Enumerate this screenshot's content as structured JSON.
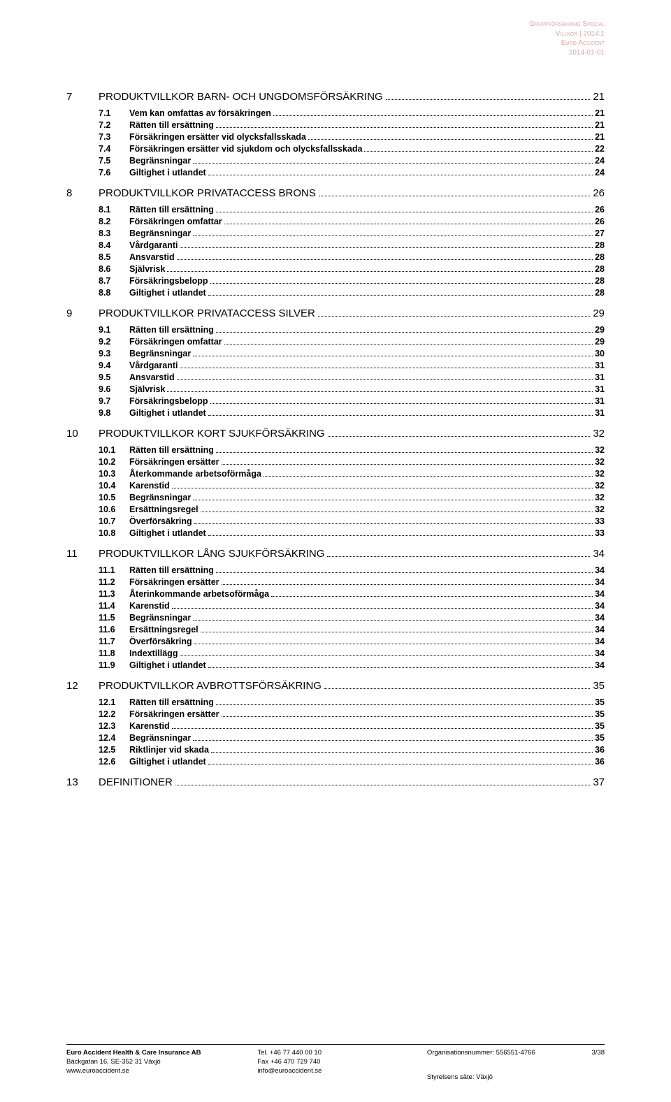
{
  "header": {
    "line1": "Gruppförsäkring Special",
    "line2": "Villkor | 2014:1",
    "line3": "Euro Accident",
    "line4": "2014-01-01"
  },
  "toc": [
    {
      "level": 1,
      "num": "7",
      "title": "PRODUKTVILLKOR BARN- OCH UNGDOMSFÖRSÄKRING",
      "page": "21"
    },
    {
      "level": 2,
      "num": "7.1",
      "title": "Vem kan omfattas av försäkringen",
      "page": "21"
    },
    {
      "level": 2,
      "num": "7.2",
      "title": "Rätten till ersättning",
      "page": "21"
    },
    {
      "level": 2,
      "num": "7.3",
      "title": "Försäkringen ersätter vid olycksfallsskada",
      "page": "21"
    },
    {
      "level": 2,
      "num": "7.4",
      "title": "Försäkringen ersätter vid sjukdom och olycksfallsskada",
      "page": "22"
    },
    {
      "level": 2,
      "num": "7.5",
      "title": "Begränsningar",
      "page": "24"
    },
    {
      "level": 2,
      "num": "7.6",
      "title": "Giltighet i utlandet",
      "page": "24"
    },
    {
      "level": 1,
      "num": "8",
      "title": "PRODUKTVILLKOR PRIVATACCESS BRONS",
      "page": "26"
    },
    {
      "level": 2,
      "num": "8.1",
      "title": "Rätten till ersättning",
      "page": "26"
    },
    {
      "level": 2,
      "num": "8.2",
      "title": "Försäkringen omfattar",
      "page": "26"
    },
    {
      "level": 2,
      "num": "8.3",
      "title": "Begränsningar",
      "page": "27"
    },
    {
      "level": 2,
      "num": "8.4",
      "title": "Vårdgaranti",
      "page": "28"
    },
    {
      "level": 2,
      "num": "8.5",
      "title": "Ansvarstid",
      "page": "28"
    },
    {
      "level": 2,
      "num": "8.6",
      "title": "Självrisk",
      "page": "28"
    },
    {
      "level": 2,
      "num": "8.7",
      "title": "Försäkringsbelopp",
      "page": "28"
    },
    {
      "level": 2,
      "num": "8.8",
      "title": "Giltighet i utlandet",
      "page": "28"
    },
    {
      "level": 1,
      "num": "9",
      "title": "PRODUKTVILLKOR PRIVATACCESS SILVER",
      "page": "29"
    },
    {
      "level": 2,
      "num": "9.1",
      "title": "Rätten till ersättning",
      "page": "29"
    },
    {
      "level": 2,
      "num": "9.2",
      "title": "Försäkringen omfattar",
      "page": "29"
    },
    {
      "level": 2,
      "num": "9.3",
      "title": "Begränsningar",
      "page": "30"
    },
    {
      "level": 2,
      "num": "9.4",
      "title": "Vårdgaranti",
      "page": "31"
    },
    {
      "level": 2,
      "num": "9.5",
      "title": "Ansvarstid",
      "page": "31"
    },
    {
      "level": 2,
      "num": "9.6",
      "title": "Självrisk",
      "page": "31"
    },
    {
      "level": 2,
      "num": "9.7",
      "title": "Försäkringsbelopp",
      "page": "31"
    },
    {
      "level": 2,
      "num": "9.8",
      "title": "Giltighet i utlandet",
      "page": "31"
    },
    {
      "level": 1,
      "num": "10",
      "title": "PRODUKTVILLKOR KORT SJUKFÖRSÄKRING",
      "page": "32"
    },
    {
      "level": 2,
      "num": "10.1",
      "title": "Rätten till ersättning",
      "page": "32"
    },
    {
      "level": 2,
      "num": "10.2",
      "title": "Försäkringen ersätter",
      "page": "32"
    },
    {
      "level": 2,
      "num": "10.3",
      "title": "Återkommande arbetsoförmåga",
      "page": "32"
    },
    {
      "level": 2,
      "num": "10.4",
      "title": "Karenstid",
      "page": "32"
    },
    {
      "level": 2,
      "num": "10.5",
      "title": "Begränsningar",
      "page": "32"
    },
    {
      "level": 2,
      "num": "10.6",
      "title": "Ersättningsregel",
      "page": "32"
    },
    {
      "level": 2,
      "num": "10.7",
      "title": "Överförsäkring",
      "page": "33"
    },
    {
      "level": 2,
      "num": "10.8",
      "title": "Giltighet i utlandet",
      "page": "33"
    },
    {
      "level": 1,
      "num": "11",
      "title": "PRODUKTVILLKOR LÅNG SJUKFÖRSÄKRING",
      "page": "34"
    },
    {
      "level": 2,
      "num": "11.1",
      "title": "Rätten till ersättning",
      "page": "34"
    },
    {
      "level": 2,
      "num": "11.2",
      "title": "Försäkringen ersätter",
      "page": "34"
    },
    {
      "level": 2,
      "num": "11.3",
      "title": "Återinkommande arbetsoförmåga",
      "page": "34"
    },
    {
      "level": 2,
      "num": "11.4",
      "title": "Karenstid",
      "page": "34"
    },
    {
      "level": 2,
      "num": "11.5",
      "title": "Begränsningar",
      "page": "34"
    },
    {
      "level": 2,
      "num": "11.6",
      "title": "Ersättningsregel",
      "page": "34"
    },
    {
      "level": 2,
      "num": "11.7",
      "title": "Överförsäkring",
      "page": "34"
    },
    {
      "level": 2,
      "num": "11.8",
      "title": "Indextillägg",
      "page": "34"
    },
    {
      "level": 2,
      "num": "11.9",
      "title": "Giltighet i utlandet",
      "page": "34"
    },
    {
      "level": 1,
      "num": "12",
      "title": "PRODUKTVILLKOR AVBROTTSFÖRSÄKRING",
      "page": "35"
    },
    {
      "level": 2,
      "num": "12.1",
      "title": "Rätten till ersättning",
      "page": "35"
    },
    {
      "level": 2,
      "num": "12.2",
      "title": "Försäkringen ersätter",
      "page": "35"
    },
    {
      "level": 2,
      "num": "12.3",
      "title": "Karenstid",
      "page": "35"
    },
    {
      "level": 2,
      "num": "12.4",
      "title": "Begränsningar",
      "page": "35"
    },
    {
      "level": 2,
      "num": "12.5",
      "title": "Riktlinjer vid skada",
      "page": "36"
    },
    {
      "level": 2,
      "num": "12.6",
      "title": "Giltighet i utlandet",
      "page": "36"
    },
    {
      "level": 1,
      "num": "13",
      "title": "DEFINITIONER",
      "page": "37"
    }
  ],
  "footer": {
    "col1": {
      "line1": "Euro Accident Health & Care Insurance AB",
      "line2": "Bäckgatan 16, SE-352 31 Växjö",
      "line3": "www.euroaccident.se"
    },
    "col2": {
      "line1": "Tel. +46 77 440 00 10",
      "line2": "Fax +46 470 729 740",
      "line3": "info@euroaccident.se"
    },
    "col3": {
      "line1": "Organisationsnummer: 556551-4766",
      "line2": "Styrelsens säte: Växjö"
    },
    "pagenum": "3/38"
  }
}
